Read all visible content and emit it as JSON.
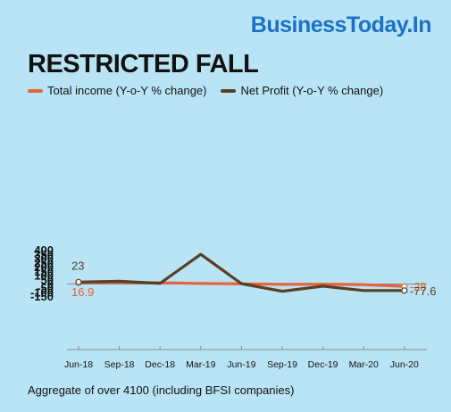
{
  "brand": "BusinessToday.In",
  "chart_data": {
    "type": "line",
    "title": "RESTRICTED FALL",
    "categories": [
      "Jun-18",
      "Sep-18",
      "Dec-18",
      "Mar-19",
      "Jun-19",
      "Sep-19",
      "Dec-19",
      "Mar-20",
      "Jun-20"
    ],
    "series": [
      {
        "name": "Total income (Y-o-Y % change)",
        "color": "#e8623a",
        "values": [
          16.9,
          20,
          15,
          7,
          2,
          -4,
          -2,
          -7,
          -28
        ]
      },
      {
        "name": "Net Profit (Y-o-Y % change)",
        "color": "#5a3f23",
        "values": [
          23,
          33,
          8,
          352,
          4,
          -86,
          -25,
          -77.6,
          -77.6
        ]
      }
    ],
    "data_labels": [
      {
        "series": 0,
        "index": 0,
        "text": "16.9"
      },
      {
        "series": 1,
        "index": 0,
        "text": "23"
      },
      {
        "series": 0,
        "index": 8,
        "text": "-28"
      },
      {
        "series": 1,
        "index": 8,
        "text": "-77.6"
      }
    ],
    "y_ticks": [
      400,
      350,
      300,
      250,
      200,
      150,
      100,
      50,
      0,
      -50,
      -100,
      -150
    ],
    "ylim": [
      -150,
      400
    ],
    "grid": false
  },
  "footnote": "Aggregate of over 4100 (including BFSI companies)"
}
